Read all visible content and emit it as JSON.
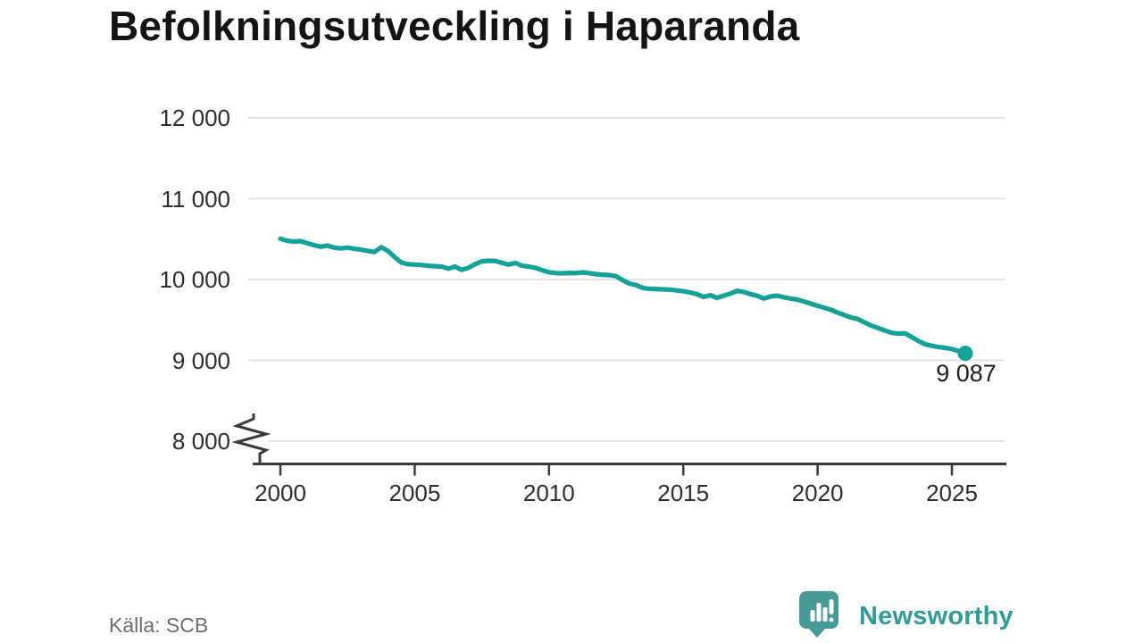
{
  "title": "Befolkningsutveckling i Haparanda",
  "source": {
    "label": "Källa: SCB"
  },
  "branding": {
    "name": "Newsworthy",
    "logo_color": "#479a97",
    "text_color": "#2f9c99"
  },
  "chart_data": {
    "type": "line",
    "title": "Befolkningsutveckling i Haparanda",
    "xlabel": "",
    "ylabel": "",
    "xlim": [
      2000,
      2027
    ],
    "ylim": [
      8000,
      12250
    ],
    "axis_break_at_bottom": true,
    "grid": true,
    "legend": "none",
    "line_color": "#12a298",
    "grid_color": "#e4e4e4",
    "axis_color": "#3a3a3a",
    "x_ticks": [
      2000,
      2005,
      2010,
      2015,
      2020,
      2025
    ],
    "x_tick_labels": [
      "2000",
      "2005",
      "2010",
      "2015",
      "2020",
      "2025"
    ],
    "y_tick_values": [
      12000,
      11000,
      10000,
      9000,
      8000
    ],
    "y_tick_labels": [
      "12 000",
      "11 000",
      "10 000",
      "9 000",
      "8 000"
    ],
    "series": [
      {
        "name": "Befolkning i Haparanda",
        "x_start": 2000,
        "x_step": 0.25,
        "values": [
          10505,
          10480,
          10470,
          10475,
          10450,
          10425,
          10405,
          10420,
          10395,
          10385,
          10395,
          10380,
          10370,
          10355,
          10340,
          10400,
          10355,
          10280,
          10210,
          10190,
          10185,
          10180,
          10170,
          10165,
          10160,
          10135,
          10160,
          10120,
          10145,
          10190,
          10225,
          10232,
          10230,
          10205,
          10185,
          10205,
          10170,
          10160,
          10145,
          10115,
          10090,
          10080,
          10077,
          10082,
          10080,
          10088,
          10080,
          10066,
          10060,
          10055,
          10041,
          9990,
          9950,
          9930,
          9895,
          9885,
          9882,
          9878,
          9875,
          9865,
          9855,
          9840,
          9820,
          9785,
          9805,
          9772,
          9800,
          9825,
          9860,
          9845,
          9820,
          9800,
          9765,
          9790,
          9800,
          9780,
          9765,
          9750,
          9728,
          9700,
          9675,
          9650,
          9625,
          9590,
          9560,
          9530,
          9510,
          9470,
          9430,
          9400,
          9370,
          9340,
          9330,
          9335,
          9290,
          9240,
          9200,
          9180,
          9165,
          9155,
          9140,
          9115,
          9087
        ]
      }
    ],
    "last_point": {
      "x": 2025.5,
      "value": 9087,
      "label": "9 087"
    }
  }
}
